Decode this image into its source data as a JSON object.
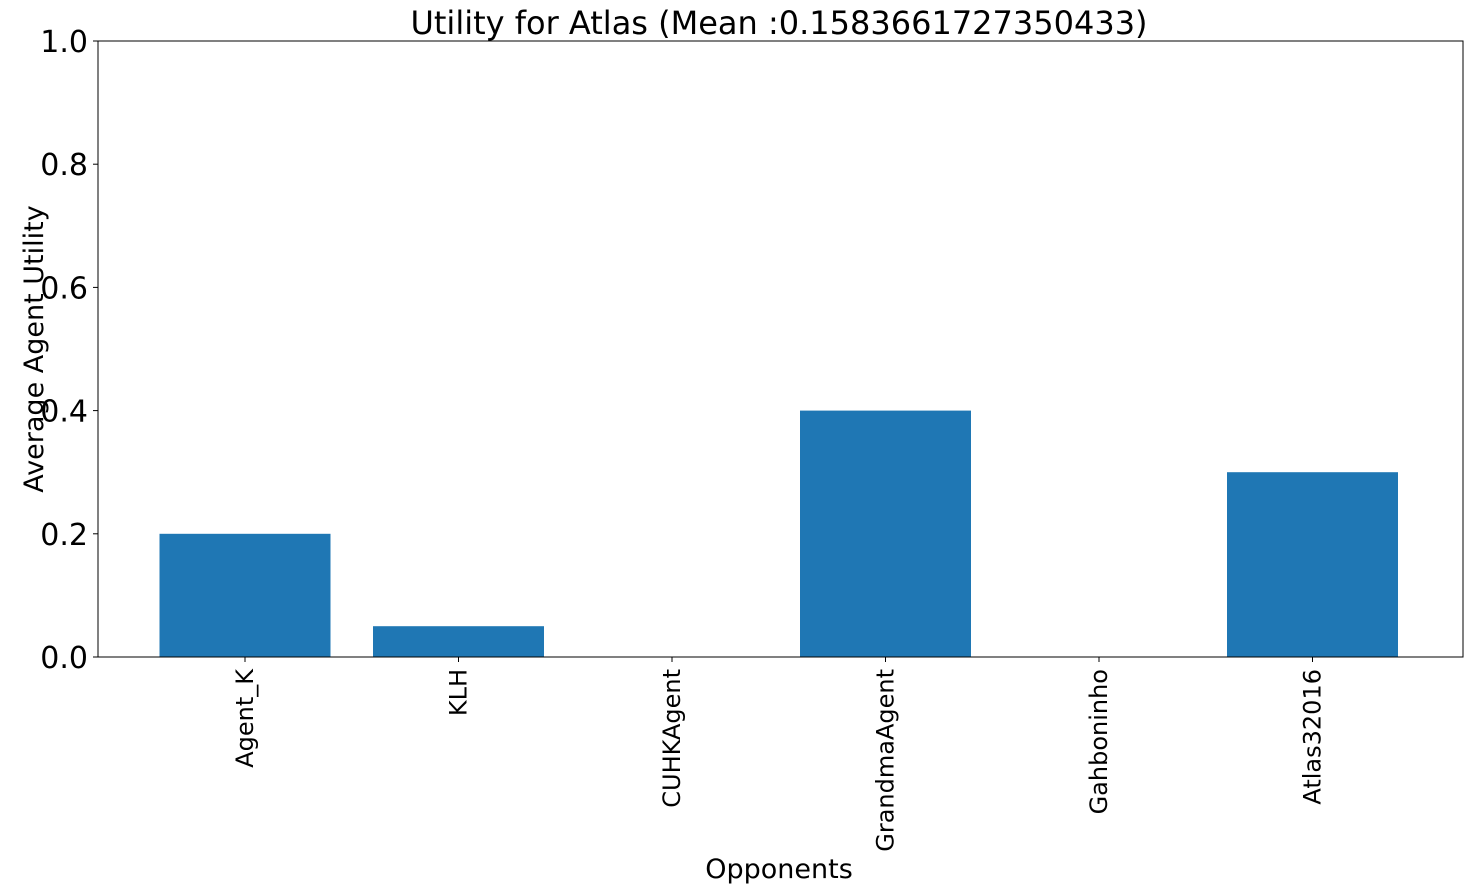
{
  "chart_data": {
    "type": "bar",
    "title": "Utility for Atlas (Mean :0.1583661727350433)",
    "xlabel": "Opponents",
    "ylabel": "Average Agent Utility",
    "categories": [
      "Agent_K",
      "KLH",
      "CUHKAgent",
      "GrandmaAgent",
      "Gahboninho",
      "Atlas32016"
    ],
    "values": [
      0.2,
      0.05,
      0.0,
      0.4,
      0.0,
      0.3
    ],
    "ylim": [
      0,
      1
    ],
    "yticks": [
      "0.0",
      "0.2",
      "0.4",
      "0.6",
      "0.8",
      "1.0"
    ],
    "grid": false,
    "bar_color": "#1f77b4"
  }
}
